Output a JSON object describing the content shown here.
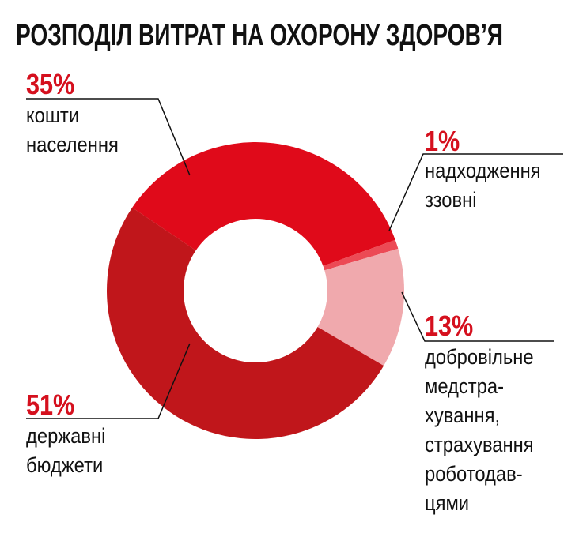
{
  "chart_data": {
    "type": "donut",
    "title": "РОЗПОДІЛ ВИТРАТ НА ОХОРОНУ ЗДОРОВ’Я",
    "categories": [
      "кошти\nнаселення",
      "надходження\nззовні",
      "добровільне\nмедстра-\nхування,\nстрахування\nроботодав-\nцями",
      "державні\nбюджети"
    ],
    "values": [
      35,
      1,
      13,
      51
    ],
    "value_labels": [
      "35%",
      "1%",
      "13%",
      "51%"
    ],
    "colors": [
      "#e00a1a",
      "#ec4a55",
      "#f0a9ad",
      "#c0161b"
    ]
  }
}
